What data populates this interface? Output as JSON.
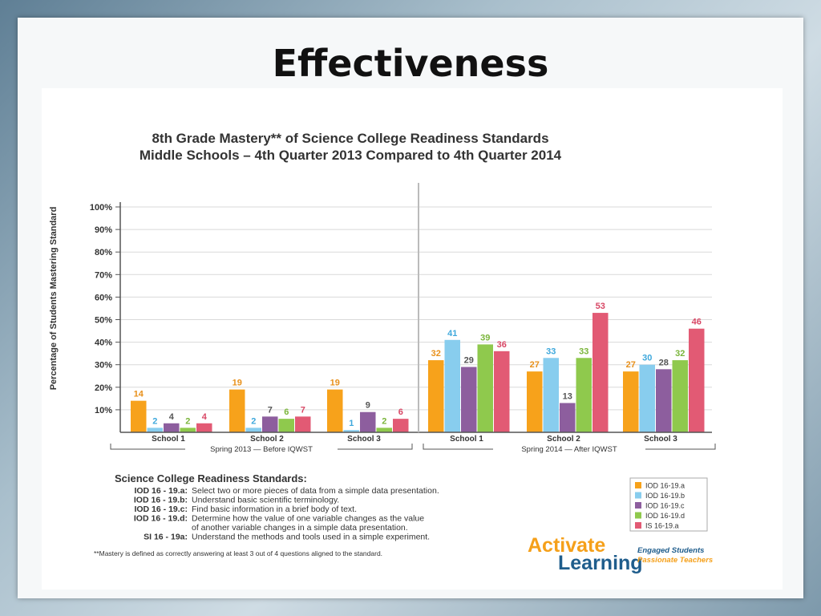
{
  "slide_title": "Effectiveness",
  "chart_data": {
    "type": "bar",
    "title": "8th Grade Mastery** of Science College Readiness Standards",
    "subtitle": "Middle Schools – 4th Quarter 2013 Compared to 4th Quarter 2014",
    "ylabel": "Percentage of Students Mastering Standard",
    "ylim": [
      0,
      100
    ],
    "yticks": [
      "10%",
      "20%",
      "30%",
      "40%",
      "50%",
      "60%",
      "70%",
      "80%",
      "90%",
      "100%"
    ],
    "grid": true,
    "groups": [
      {
        "period": "Spring 2013 — Before IQWST",
        "categories": [
          "School 1",
          "School 2",
          "School 3"
        ]
      },
      {
        "period": "Spring 2014 — After IQWST",
        "categories": [
          "School 1",
          "School 2",
          "School 3"
        ]
      }
    ],
    "categories": [
      "School 1",
      "School 2",
      "School 3",
      "School 1",
      "School 2",
      "School 3"
    ],
    "series": [
      {
        "name": "IOD 16-19.a",
        "color": "#f7a21b",
        "label_color": "#e8901a",
        "values": [
          14,
          19,
          19,
          32,
          27,
          27
        ]
      },
      {
        "name": "IOD 16-19.b",
        "color": "#88cdee",
        "label_color": "#3ea8dc",
        "values": [
          2,
          2,
          1,
          41,
          33,
          30
        ]
      },
      {
        "name": "IOD 16-19.c",
        "color": "#8d5e9e",
        "label_color": "#555555",
        "values": [
          4,
          7,
          9,
          29,
          13,
          28
        ]
      },
      {
        "name": "IOD 16-19.d",
        "color": "#8fc94d",
        "label_color": "#7ab53a",
        "values": [
          2,
          6,
          2,
          39,
          33,
          32
        ]
      },
      {
        "name": "IS 16-19.a",
        "color": "#e25a74",
        "label_color": "#d84765",
        "values": [
          4,
          7,
          6,
          36,
          53,
          46
        ]
      }
    ],
    "legend_position": "right"
  },
  "standards": {
    "title": "Science College Readiness Standards:",
    "items": [
      {
        "code": "IOD 16 - 19.a:",
        "lines": [
          "Select two or more pieces of data from a simple data presentation."
        ]
      },
      {
        "code": "IOD 16 - 19.b:",
        "lines": [
          "Understand basic scientific terminology."
        ]
      },
      {
        "code": "IOD 16 - 19.c:",
        "lines": [
          "Find basic information in a brief body of text."
        ]
      },
      {
        "code": "IOD 16 - 19.d:",
        "lines": [
          "Determine how the value of one variable changes as the value",
          "of another variable changes in a simple data presentation."
        ]
      },
      {
        "code": "SI 16 - 19a:",
        "lines": [
          "Understand the methods and tools used in a simple experiment."
        ]
      }
    ]
  },
  "footnote": "**Mastery is defined as correctly answering at least 3 out of 4 questions aligned to the standard.",
  "logo": {
    "word1": "Activate",
    "word2": "Learning",
    "tagline1": "Engaged Students",
    "tagline2": "Passionate Teachers",
    "color_orange": "#f5a01a",
    "color_blue": "#1f5d8c"
  }
}
